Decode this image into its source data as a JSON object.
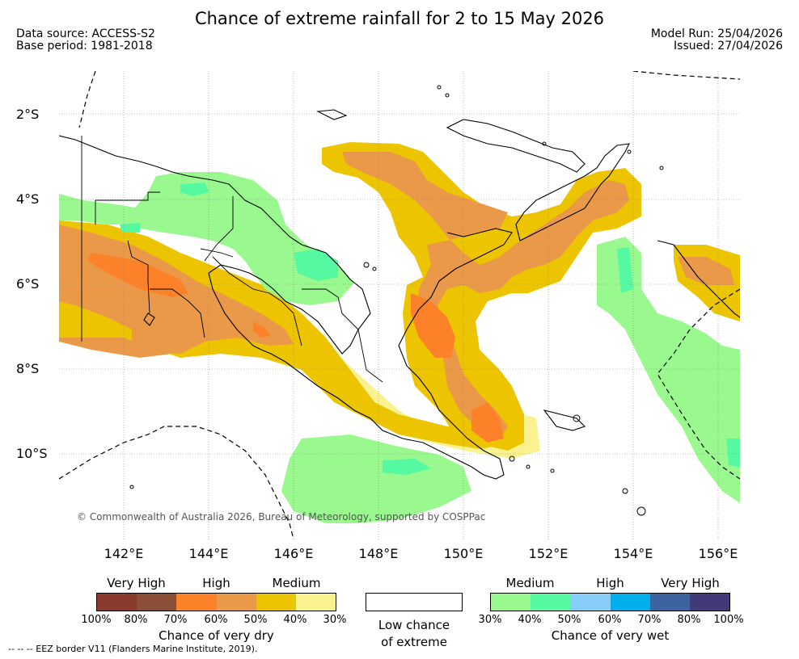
{
  "title": "Chance of extreme rainfall for 2 to 15 May 2026",
  "data_source": "Data source: ACCESS-S2",
  "base_period": "Base period: 1981-2018",
  "model_run": "Model Run: 25/04/2026",
  "issued": "Issued: 27/04/2026",
  "map": {
    "lat_labels": [
      "2°S",
      "4°S",
      "6°S",
      "8°S",
      "10°S"
    ],
    "lon_labels": [
      "142°E",
      "144°E",
      "146°E",
      "148°E",
      "150°E",
      "152°E",
      "154°E",
      "156°E"
    ],
    "copyright": "© Commonwealth of Australia 2026, Bureau of Meteorology, supported by COSPPac",
    "colors": {
      "dry_30": "#f9f28e",
      "dry_40": "#ecc400",
      "dry_50": "#ea9948",
      "dry_60": "#fd8128",
      "wet_30": "#99f98e",
      "wet_40": "#55f9a1",
      "land_outline": "#000000",
      "eez_border": "#000000",
      "grid": "#888888"
    }
  },
  "legend": {
    "dry": {
      "levels": [
        "Very High",
        "High",
        "Medium"
      ],
      "ticks": [
        "100%",
        "80%",
        "70%",
        "60%",
        "50%",
        "40%",
        "30%"
      ],
      "colors": [
        "#8b3a2e",
        "#8b4f38",
        "#fd8128",
        "#ea9948",
        "#ecc400",
        "#f9f28e"
      ],
      "label": "Chance of very dry"
    },
    "low": {
      "label_line1": "Low chance",
      "label_line2": "of extreme",
      "color": "#ffffff"
    },
    "wet": {
      "levels": [
        "Medium",
        "High",
        "Very High"
      ],
      "ticks": [
        "30%",
        "40%",
        "50%",
        "60%",
        "70%",
        "80%",
        "100%"
      ],
      "colors": [
        "#99f98e",
        "#55f9a1",
        "#88ccf8",
        "#00aeeb",
        "#3b64a1",
        "#413978"
      ],
      "label": "Chance of very wet"
    }
  },
  "footer": "--  --  -- EEZ border V11 (Flanders Marine Institute, 2019)."
}
